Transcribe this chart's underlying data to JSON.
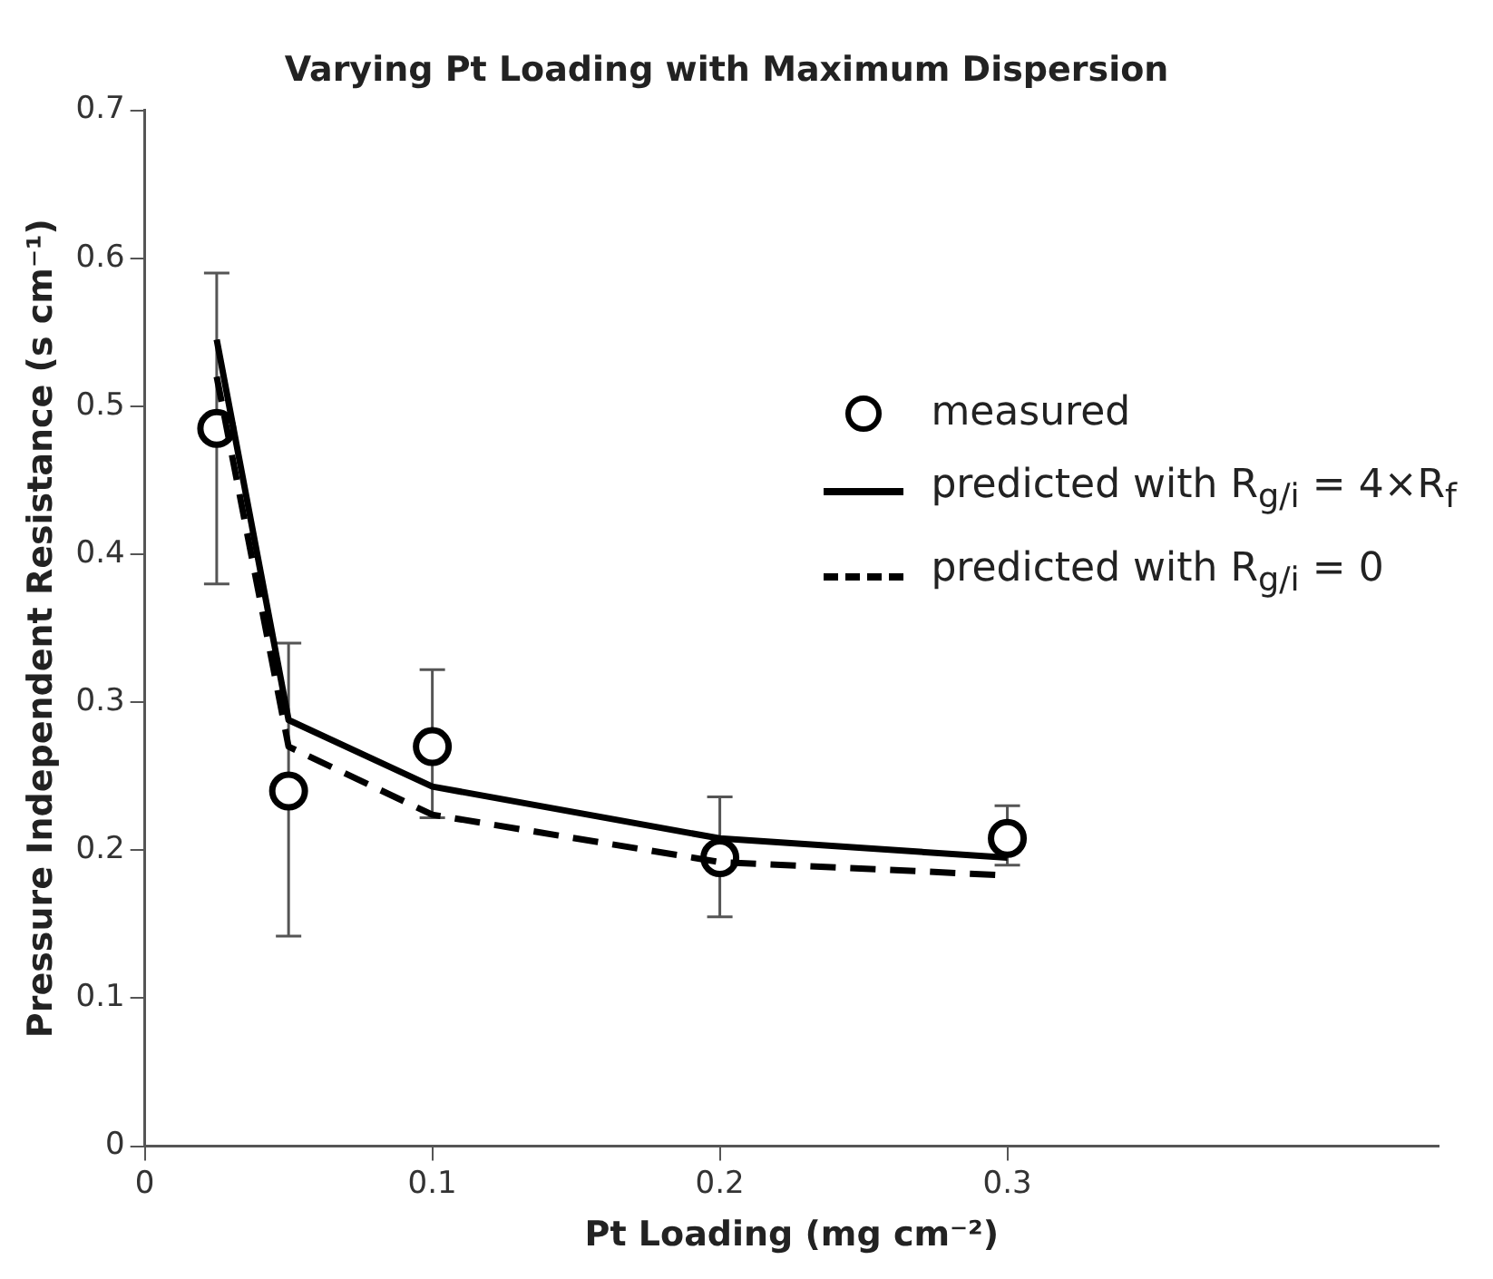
{
  "chart_data": {
    "type": "scatter",
    "title": "Varying Pt Loading with Maximum Dispersion",
    "xlabel": "Pt Loading (mg cm⁻²)",
    "ylabel": "Pressure Independent Resistance (s cm⁻¹)",
    "x": [
      0.025,
      0.05,
      0.1,
      0.2,
      0.3
    ],
    "series": [
      {
        "name": "measured",
        "color": "#000000",
        "marker": "circle",
        "values": [
          0.485,
          0.24,
          0.27,
          0.195,
          0.208
        ],
        "errors": [
          [
            0.38,
            0.59
          ],
          [
            0.142,
            0.34
          ],
          [
            0.222,
            0.322
          ],
          [
            0.155,
            0.236
          ],
          [
            0.19,
            0.23
          ]
        ]
      },
      {
        "name": "predicted with R$_{g/i}$ = 4×R$_{f}$",
        "type": "line",
        "color": "#000000",
        "marker": "none",
        "line_style": "solid",
        "values": [
          0.545,
          0.288,
          0.243,
          0.208,
          0.195
        ]
      },
      {
        "name": "predicted with R$_{g/i}$ = 0",
        "type": "line",
        "color": "#000000",
        "marker": "none",
        "line_style": "dashed",
        "values": [
          0.52,
          0.27,
          0.224,
          0.192,
          0.183
        ]
      }
    ],
    "xlim": [
      0,
      0.45
    ],
    "xticks": [
      0,
      0.1,
      0.2,
      0.3
    ],
    "ylim": [
      0,
      0.7
    ],
    "yticks": [
      0,
      0.1,
      0.2,
      0.3,
      0.4,
      0.5,
      0.6,
      0.7
    ],
    "grid": false,
    "legend": "right"
  }
}
